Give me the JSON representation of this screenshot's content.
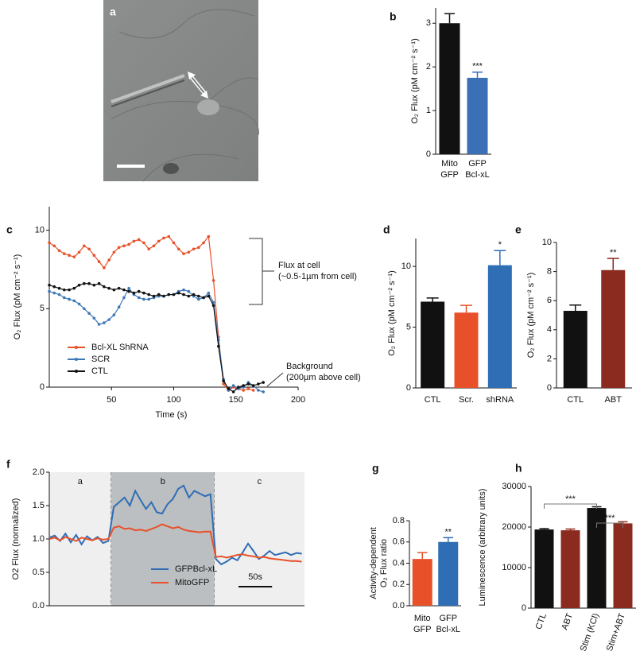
{
  "chart_data": [
    {
      "type": "image",
      "panel": "a"
    },
    {
      "type": "bar",
      "panel": "b",
      "categories": [
        [
          "Mito",
          "GFP"
        ],
        [
          "GFP",
          "Bcl-xL"
        ]
      ],
      "values": [
        3.0,
        1.75
      ],
      "errors": [
        0.22,
        0.13
      ],
      "colors": [
        "#111111",
        "#3b6fb6"
      ],
      "significance": [
        null,
        "***"
      ],
      "ylabel": "O₂ Flux (pM cm⁻² s⁻¹)",
      "ylim": [
        0,
        3.35
      ],
      "yticks": [
        0,
        1,
        2,
        3
      ]
    },
    {
      "type": "line",
      "panel": "c",
      "xlabel": "Time (s)",
      "ylabel": "O₂ Flux (pM cm⁻² s⁻¹)",
      "xlim": [
        0,
        200
      ],
      "xticks": [
        50,
        100,
        150,
        200
      ],
      "ylim": [
        0,
        11.5
      ],
      "yticks": [
        0,
        5,
        10
      ],
      "markers": true,
      "x": [
        0,
        4,
        8,
        12,
        16,
        20,
        24,
        28,
        32,
        36,
        40,
        44,
        48,
        52,
        56,
        60,
        64,
        68,
        72,
        76,
        80,
        84,
        88,
        92,
        96,
        100,
        104,
        108,
        112,
        116,
        120,
        124,
        128,
        132,
        136,
        140,
        144,
        148,
        152,
        156,
        160,
        164,
        168,
        172
      ],
      "series": [
        {
          "name": "Bcl-XL ShRNA",
          "color": "#e8502a",
          "values": [
            9.2,
            9.0,
            8.7,
            8.5,
            8.4,
            8.3,
            8.6,
            9.0,
            8.8,
            8.4,
            8.0,
            7.6,
            8.1,
            8.6,
            8.9,
            9.0,
            9.1,
            9.3,
            9.4,
            9.2,
            8.8,
            9.0,
            9.3,
            9.5,
            9.6,
            9.2,
            8.8,
            8.5,
            8.6,
            8.8,
            8.9,
            9.2,
            9.6,
            6.8,
            3.2,
            0.2,
            -0.2,
            0.0,
            -0.1,
            -0.2,
            -0.1,
            -0.2,
            null,
            null
          ]
        },
        {
          "name": "SCR",
          "color": "#3f78b8",
          "values": [
            6.1,
            6.0,
            5.9,
            5.7,
            5.6,
            5.5,
            5.3,
            5.0,
            4.7,
            4.4,
            4.0,
            4.1,
            4.3,
            4.6,
            5.1,
            5.7,
            6.3,
            5.9,
            5.7,
            5.6,
            5.6,
            5.7,
            5.8,
            5.8,
            5.9,
            5.9,
            6.1,
            6.2,
            6.1,
            5.8,
            5.6,
            5.7,
            6.0,
            5.4,
            3.0,
            0.5,
            -0.2,
            0.1,
            -0.1,
            0.0,
            0.3,
            0.1,
            -0.2,
            -0.3
          ]
        },
        {
          "name": "CTL",
          "color": "#111111",
          "values": [
            6.5,
            6.4,
            6.3,
            6.2,
            6.2,
            6.3,
            6.5,
            6.6,
            6.6,
            6.5,
            6.6,
            6.4,
            6.3,
            6.2,
            6.3,
            6.2,
            6.1,
            6.0,
            6.1,
            6.0,
            5.9,
            5.8,
            5.9,
            5.8,
            5.9,
            5.9,
            6.0,
            5.9,
            5.8,
            5.9,
            5.8,
            5.7,
            5.8,
            5.2,
            2.6,
            0.4,
            -0.1,
            -0.3,
            0.0,
            0.1,
            0.2,
            0.1,
            0.2,
            0.3
          ]
        }
      ],
      "annotations": [
        [
          "Flux at cell",
          "(~0.5-1µm from cell)"
        ],
        [
          "Background",
          "(200µm above cell)"
        ]
      ]
    },
    {
      "type": "bar",
      "panel": "d",
      "categories": [
        [
          "CTL"
        ],
        [
          "Scr."
        ],
        [
          "shRNA"
        ]
      ],
      "values": [
        7.1,
        6.2,
        10.1
      ],
      "errors": [
        0.3,
        0.6,
        1.2
      ],
      "colors": [
        "#111111",
        "#e8502a",
        "#2f6db5"
      ],
      "significance": [
        null,
        null,
        "*"
      ],
      "ylabel": "O₂ Flux (pM cm⁻² s⁻¹)",
      "ylim": [
        0,
        12.3
      ],
      "yticks": [
        0,
        5,
        10
      ]
    },
    {
      "type": "bar",
      "panel": "e",
      "categories": [
        [
          "CTL"
        ],
        [
          "ABT"
        ]
      ],
      "values": [
        5.3,
        8.1
      ],
      "errors": [
        0.4,
        0.8
      ],
      "colors": [
        "#111111",
        "#8b2a1e"
      ],
      "significance": [
        null,
        "**"
      ],
      "ylabel": "O₂ Flux (pM cm⁻² s⁻¹)",
      "ylim": [
        0,
        10
      ],
      "yticks": [
        0,
        2,
        4,
        6,
        8,
        10
      ]
    },
    {
      "type": "line",
      "panel": "f",
      "ylabel": "O2 Flux (normalized)",
      "xlim": [
        0,
        380
      ],
      "ylim": [
        0,
        2
      ],
      "yticks": [
        {
          "value": 0,
          "label": "0.0"
        },
        {
          "value": 0.5,
          "label": "0.5"
        },
        {
          "value": 1,
          "label": "1.0"
        },
        {
          "value": 1.5,
          "label": "1.5"
        },
        {
          "value": 2,
          "label": "2.0"
        }
      ],
      "regions": [
        {
          "label": "a",
          "start": 0,
          "end": 92,
          "color": "#efefef"
        },
        {
          "label": "b",
          "start": 92,
          "end": 246,
          "color": "#bcbfc1"
        },
        {
          "label": "c",
          "start": 246,
          "end": 380,
          "color": "#efefef"
        }
      ],
      "scale_bar": {
        "length": 50,
        "label": "50s"
      },
      "x": [
        0,
        8,
        16,
        24,
        32,
        40,
        48,
        56,
        64,
        72,
        80,
        88,
        96,
        104,
        112,
        120,
        128,
        136,
        144,
        152,
        160,
        168,
        176,
        184,
        192,
        200,
        208,
        216,
        224,
        232,
        240,
        248,
        256,
        264,
        272,
        280,
        288,
        296,
        304,
        312,
        320,
        328,
        336,
        344,
        352,
        360,
        368,
        376
      ],
      "series": [
        {
          "name": "GFPBcl-xL",
          "color": "#2f6db5",
          "values": [
            1.02,
            1.05,
            0.97,
            1.08,
            0.95,
            1.06,
            0.92,
            1.04,
            0.98,
            1.03,
            0.94,
            0.97,
            1.48,
            1.55,
            1.62,
            1.5,
            1.72,
            1.58,
            1.45,
            1.55,
            1.4,
            1.38,
            1.52,
            1.6,
            1.75,
            1.8,
            1.62,
            1.72,
            1.68,
            1.64,
            1.67,
            0.7,
            0.62,
            0.66,
            0.72,
            0.68,
            0.8,
            0.93,
            0.82,
            0.7,
            0.75,
            0.82,
            0.76,
            0.78,
            0.8,
            0.76,
            0.79,
            0.78
          ]
        },
        {
          "name": "MitoGFP",
          "color": "#e8502a",
          "values": [
            1.0,
            1.02,
            0.98,
            1.03,
            1.0,
            0.97,
            1.02,
            1.0,
            0.98,
            1.01,
            0.99,
            1.0,
            1.17,
            1.19,
            1.15,
            1.16,
            1.13,
            1.14,
            1.12,
            1.15,
            1.18,
            1.22,
            1.19,
            1.16,
            1.18,
            1.14,
            1.12,
            1.11,
            1.1,
            1.11,
            1.11,
            0.73,
            0.74,
            0.72,
            0.74,
            0.76,
            0.77,
            0.75,
            0.74,
            0.72,
            0.73,
            0.71,
            0.7,
            0.69,
            0.68,
            0.67,
            0.67,
            0.66
          ]
        }
      ]
    },
    {
      "type": "bar",
      "panel": "g",
      "categories": [
        [
          "Mito",
          "GFP"
        ],
        [
          "GFP",
          "Bcl-xL"
        ]
      ],
      "values": [
        0.44,
        0.6
      ],
      "errors": [
        0.06,
        0.04
      ],
      "colors": [
        "#e8502a",
        "#2f6db5"
      ],
      "significance": [
        null,
        "**"
      ],
      "ylabel": [
        "Activity-dependent",
        "O₂ Flux ratio"
      ],
      "ylim": [
        0,
        0.8
      ],
      "yticks": [
        {
          "value": 0,
          "label": "0.0"
        },
        {
          "value": 0.2,
          "label": "0.2"
        },
        {
          "value": 0.4,
          "label": "0.4"
        },
        {
          "value": 0.6,
          "label": "0.6"
        },
        {
          "value": 0.8,
          "label": "0.8"
        }
      ]
    },
    {
      "type": "bar",
      "panel": "h",
      "categories": [
        [
          "CTL"
        ],
        [
          "ABT"
        ],
        [
          "Stim (KCl)"
        ],
        [
          "Stim+ABT"
        ]
      ],
      "values": [
        19400,
        19200,
        24700,
        20900
      ],
      "errors": [
        200,
        300,
        300,
        400
      ],
      "colors": [
        "#111111",
        "#8b2a1e",
        "#111111",
        "#8b2a1e"
      ],
      "comparisons": [
        "***",
        "***"
      ],
      "ylabel": "Luminescence (arbitrary units)",
      "ylim": [
        0,
        30000
      ],
      "yticks": [
        0,
        10000,
        20000,
        30000
      ]
    }
  ]
}
